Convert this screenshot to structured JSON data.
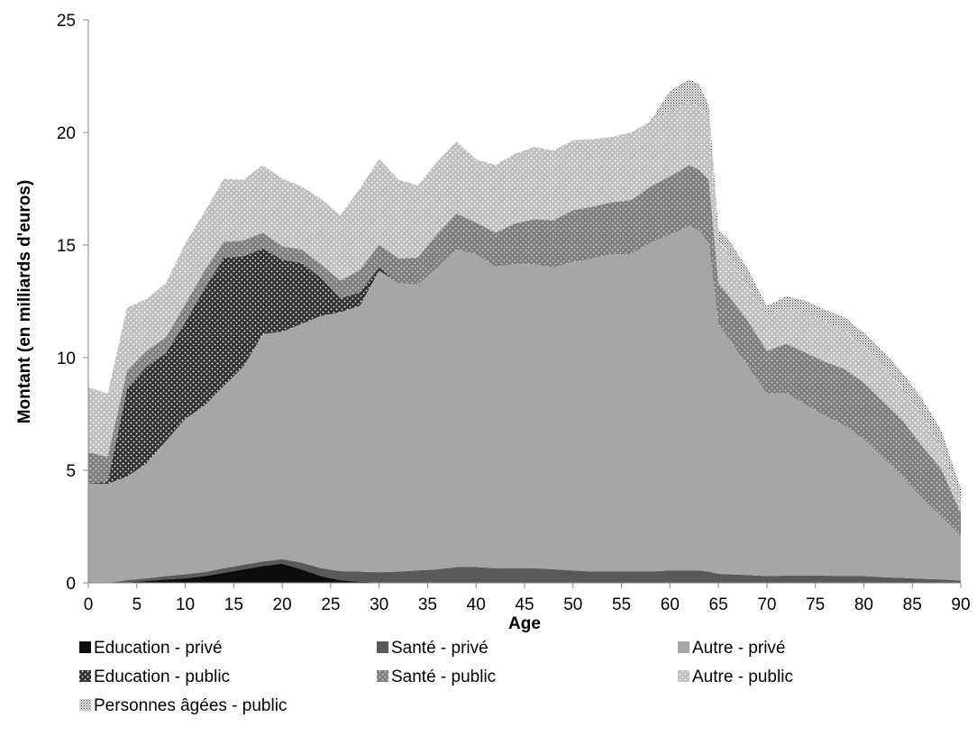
{
  "chart_data": {
    "type": "area",
    "stacked": true,
    "title": "",
    "xlabel": "Age",
    "ylabel": "Montant (en milliards d'euros)",
    "xlim": [
      0,
      90
    ],
    "ylim": [
      0,
      25
    ],
    "x_ticks": [
      "0",
      "5",
      "10",
      "15",
      "20",
      "25",
      "30",
      "35",
      "40",
      "45",
      "50",
      "55",
      "60",
      "65",
      "70",
      "75",
      "80",
      "85",
      "90"
    ],
    "y_ticks": [
      "0",
      "5",
      "10",
      "15",
      "20",
      "25"
    ],
    "grid": false,
    "legend_position": "bottom",
    "x": [
      0,
      2,
      4,
      6,
      8,
      10,
      12,
      14,
      16,
      18,
      20,
      22,
      24,
      26,
      28,
      30,
      32,
      34,
      36,
      38,
      40,
      42,
      44,
      46,
      48,
      50,
      52,
      54,
      56,
      58,
      60,
      62,
      63,
      64,
      65,
      66,
      68,
      70,
      72,
      74,
      76,
      78,
      80,
      82,
      84,
      86,
      88,
      90
    ],
    "series": [
      {
        "name": "Education - privé",
        "color": "#0d0d0d",
        "pattern": "solid",
        "values": [
          0,
          0,
          0.02,
          0.08,
          0.15,
          0.2,
          0.3,
          0.45,
          0.6,
          0.75,
          0.85,
          0.6,
          0.3,
          0.12,
          0.05,
          0.02,
          0,
          0,
          0,
          0,
          0,
          0,
          0,
          0,
          0,
          0,
          0,
          0,
          0,
          0,
          0,
          0,
          0,
          0,
          0,
          0,
          0,
          0,
          0,
          0,
          0,
          0,
          0,
          0,
          0,
          0,
          0,
          0
        ]
      },
      {
        "name": "Santé - privé",
        "color": "#595959",
        "pattern": "solid",
        "values": [
          0,
          0,
          0.1,
          0.12,
          0.15,
          0.18,
          0.18,
          0.2,
          0.2,
          0.2,
          0.2,
          0.3,
          0.35,
          0.4,
          0.45,
          0.45,
          0.5,
          0.55,
          0.6,
          0.7,
          0.7,
          0.65,
          0.65,
          0.65,
          0.6,
          0.55,
          0.5,
          0.5,
          0.5,
          0.5,
          0.55,
          0.55,
          0.55,
          0.5,
          0.4,
          0.38,
          0.35,
          0.3,
          0.32,
          0.32,
          0.32,
          0.3,
          0.3,
          0.25,
          0.22,
          0.18,
          0.15,
          0.1
        ]
      },
      {
        "name": "Autre - privé",
        "color": "#a6a6a6",
        "pattern": "solid",
        "values": [
          4.4,
          4.4,
          4.6,
          5.1,
          6.0,
          6.9,
          7.4,
          8.1,
          8.8,
          10.1,
          10.1,
          10.6,
          11.2,
          11.5,
          11.8,
          13.4,
          12.8,
          12.7,
          13.4,
          14.1,
          13.9,
          13.4,
          13.5,
          13.5,
          13.4,
          13.7,
          13.9,
          14.1,
          14.1,
          14.6,
          14.9,
          15.3,
          15.1,
          14.6,
          11.1,
          10.5,
          9.3,
          8.1,
          8.1,
          7.6,
          7.1,
          6.7,
          6.1,
          5.3,
          4.5,
          3.6,
          2.8,
          2.0
        ]
      },
      {
        "name": "Education - public",
        "color": "#333333",
        "pattern": "dots",
        "values": [
          0,
          0.1,
          3.9,
          4.3,
          3.9,
          4.3,
          5.2,
          5.7,
          4.9,
          3.8,
          3.2,
          2.7,
          1.7,
          0.6,
          0.6,
          0.15,
          0,
          0,
          0,
          0,
          0,
          0,
          0,
          0,
          0,
          0,
          0,
          0,
          0,
          0,
          0,
          0,
          0,
          0,
          0,
          0,
          0,
          0,
          0,
          0,
          0,
          0,
          0,
          0,
          0,
          0,
          0,
          0
        ]
      },
      {
        "name": "Santé - public",
        "color": "#7f7f7f",
        "pattern": "dots",
        "values": [
          1.4,
          1.1,
          0.8,
          0.7,
          0.7,
          0.8,
          0.8,
          0.7,
          0.7,
          0.7,
          0.6,
          0.6,
          0.6,
          0.8,
          1.0,
          1.0,
          1.1,
          1.2,
          1.5,
          1.6,
          1.4,
          1.5,
          1.8,
          2.0,
          2.1,
          2.3,
          2.3,
          2.3,
          2.4,
          2.5,
          2.6,
          2.7,
          2.7,
          2.8,
          1.8,
          1.9,
          2.0,
          1.9,
          2.2,
          2.3,
          2.4,
          2.5,
          2.5,
          2.5,
          2.5,
          2.3,
          2.1,
          1.0
        ]
      },
      {
        "name": "Autre - public",
        "color": "#bfbfbf",
        "pattern": "dots",
        "values": [
          2.9,
          2.8,
          2.8,
          2.3,
          2.4,
          2.7,
          2.6,
          2.8,
          2.7,
          3.0,
          3.0,
          2.8,
          2.9,
          2.9,
          3.6,
          3.8,
          3.5,
          3.2,
          3.2,
          3.2,
          2.8,
          3.0,
          3.1,
          3.2,
          3.1,
          3.1,
          3.0,
          2.9,
          3.0,
          2.9,
          2.9,
          2.8,
          2.8,
          2.8,
          1.9,
          1.9,
          1.6,
          1.6,
          1.6,
          1.8,
          1.8,
          1.7,
          1.6,
          1.6,
          1.4,
          1.4,
          1.0,
          0.5
        ]
      },
      {
        "name": "Personnes âgées - public",
        "color": "#d9d9d9",
        "pattern": "stipple",
        "values": [
          0,
          0,
          0,
          0,
          0,
          0,
          0,
          0,
          0,
          0,
          0,
          0,
          0,
          0,
          0,
          0,
          0,
          0,
          0,
          0,
          0,
          0,
          0,
          0,
          0,
          0,
          0,
          0,
          0,
          0,
          0.9,
          1.0,
          1.0,
          0.5,
          0.5,
          0.6,
          0.7,
          0.4,
          0.5,
          0.5,
          0.5,
          0.6,
          0.6,
          0.6,
          0.7,
          0.7,
          0.7,
          0.6
        ]
      }
    ],
    "legend": [
      {
        "label": "Education - privé"
      },
      {
        "label": "Santé - privé"
      },
      {
        "label": "Autre - privé"
      },
      {
        "label": "Education - public"
      },
      {
        "label": "Santé - public"
      },
      {
        "label": "Autre - public"
      },
      {
        "label": "Personnes âgées - public"
      }
    ]
  }
}
